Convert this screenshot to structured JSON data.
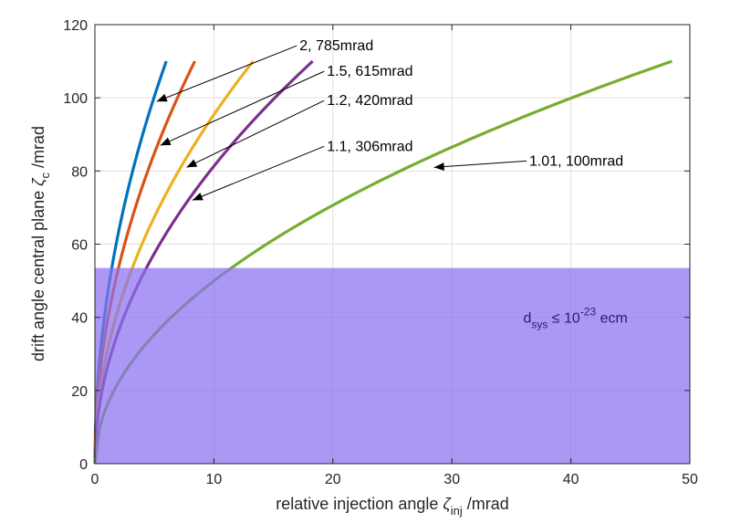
{
  "chart_data": {
    "type": "line",
    "title": "",
    "xlabel": {
      "main": "relative injection angle ",
      "symbol": "ζ",
      "sub": "inj",
      "unit": " /mrad"
    },
    "ylabel": {
      "main": "drift angle central plane ",
      "symbol": "ζ",
      "sub": "c",
      "unit": " /mrad"
    },
    "xlim": [
      0,
      50
    ],
    "ylim": [
      0,
      120
    ],
    "xticks": [
      0,
      10,
      20,
      30,
      40,
      50
    ],
    "yticks": [
      0,
      20,
      40,
      60,
      80,
      100,
      120
    ],
    "grid": true,
    "shaded_region": {
      "y_min": 0,
      "y_max": 53.5,
      "color": "#8a70f0",
      "opacity": 0.72,
      "label": {
        "d": "d",
        "sub": "sys",
        "rel": " ≤ 10",
        "sup": "-23",
        "unit": " ecm"
      },
      "label_at": [
        36,
        40
      ]
    },
    "series": [
      {
        "name": "2, 785mrad",
        "color": "#0072bd",
        "x_max": 6.0,
        "y_max": 110,
        "label": "2, 785mrad",
        "label_at": [
          17.2,
          113
        ],
        "arrow_to": [
          5.2,
          99
        ]
      },
      {
        "name": "1.5, 615mrad",
        "color": "#d95319",
        "x_max": 8.4,
        "y_max": 110,
        "label": "1.5, 615mrad",
        "label_at": [
          19.5,
          106
        ],
        "arrow_to": [
          5.5,
          87
        ]
      },
      {
        "name": "1.2, 420mrad",
        "color": "#edb120",
        "x_max": 13.3,
        "y_max": 110,
        "label": "1.2, 420mrad",
        "label_at": [
          19.5,
          98
        ],
        "arrow_to": [
          7.7,
          81
        ]
      },
      {
        "name": "1.1, 306mrad",
        "color": "#7e2f8e",
        "x_max": 18.3,
        "y_max": 110,
        "label": "1.1, 306mrad",
        "label_at": [
          19.5,
          85.5
        ],
        "arrow_to": [
          8.2,
          72
        ]
      },
      {
        "name": "1.01, 100mrad",
        "color": "#77ac30",
        "x_max": 48.5,
        "y_max": 110,
        "label": "1.01, 100mrad",
        "label_at": [
          36.5,
          81.5
        ],
        "arrow_to": [
          28.5,
          81
        ]
      }
    ]
  }
}
